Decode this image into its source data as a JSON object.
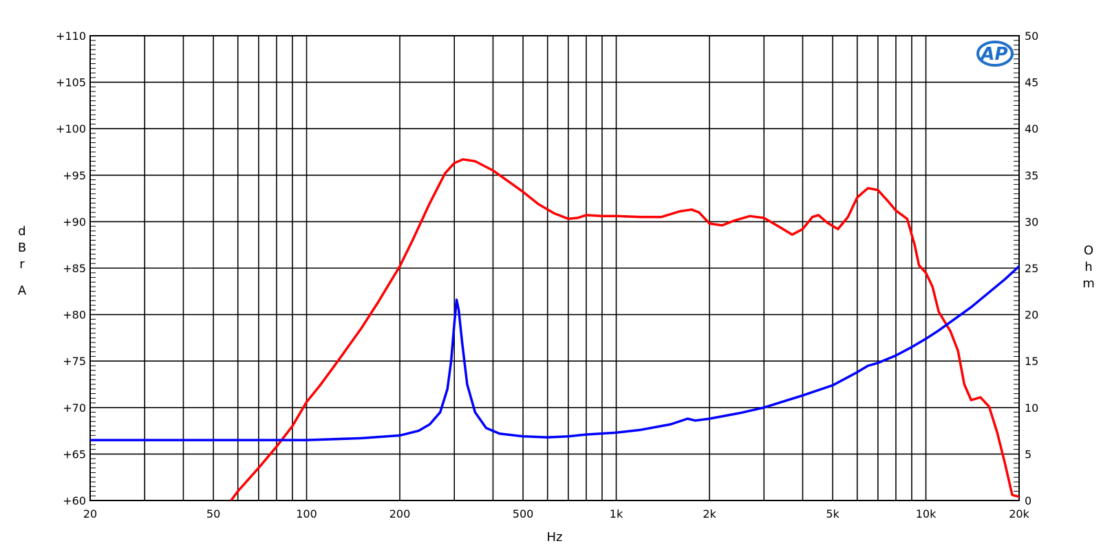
{
  "chart_data": {
    "type": "line",
    "xlabel": "Hz",
    "ylabel": "dBrA",
    "y2label": "Ohm",
    "xscale": "log",
    "xlim": [
      20,
      20000
    ],
    "ylim": [
      60,
      110
    ],
    "y2lim": [
      0,
      50
    ],
    "grid": true,
    "logo": "AP",
    "x_tick_labels": [
      {
        "value": 20,
        "label": "20"
      },
      {
        "value": 50,
        "label": "50"
      },
      {
        "value": 100,
        "label": "100"
      },
      {
        "value": 200,
        "label": "200"
      },
      {
        "value": 500,
        "label": "500"
      },
      {
        "value": 1000,
        "label": "1k"
      },
      {
        "value": 2000,
        "label": "2k"
      },
      {
        "value": 5000,
        "label": "5k"
      },
      {
        "value": 10000,
        "label": "10k"
      },
      {
        "value": 20000,
        "label": "20k"
      }
    ],
    "y_tick_labels": [
      {
        "value": 110,
        "label": "+110"
      },
      {
        "value": 105,
        "label": "+105"
      },
      {
        "value": 100,
        "label": "+100"
      },
      {
        "value": 95,
        "label": "+95"
      },
      {
        "value": 90,
        "label": "+90"
      },
      {
        "value": 85,
        "label": "+85"
      },
      {
        "value": 80,
        "label": "+80"
      },
      {
        "value": 75,
        "label": "+75"
      },
      {
        "value": 70,
        "label": "+70"
      },
      {
        "value": 65,
        "label": "+65"
      },
      {
        "value": 60,
        "label": "+60"
      }
    ],
    "y2_tick_labels": [
      {
        "value": 50,
        "label": "50"
      },
      {
        "value": 45,
        "label": "45"
      },
      {
        "value": 40,
        "label": "40"
      },
      {
        "value": 35,
        "label": "35"
      },
      {
        "value": 30,
        "label": "30"
      },
      {
        "value": 25,
        "label": "25"
      },
      {
        "value": 20,
        "label": "20"
      },
      {
        "value": 15,
        "label": "15"
      },
      {
        "value": 10,
        "label": "10"
      },
      {
        "value": 5,
        "label": "5"
      },
      {
        "value": 0,
        "label": "0"
      }
    ],
    "series": [
      {
        "axis": "left",
        "color": "#ff0000",
        "points": [
          [
            57,
            60
          ],
          [
            60,
            61
          ],
          [
            70,
            63.5
          ],
          [
            80,
            65.8
          ],
          [
            90,
            68
          ],
          [
            100,
            70.6
          ],
          [
            110,
            72.3
          ],
          [
            120,
            74
          ],
          [
            130,
            75.6
          ],
          [
            150,
            78.5
          ],
          [
            170,
            81.3
          ],
          [
            200,
            85.2
          ],
          [
            220,
            88
          ],
          [
            250,
            92
          ],
          [
            280,
            95.2
          ],
          [
            300,
            96.3
          ],
          [
            320,
            96.7
          ],
          [
            350,
            96.5
          ],
          [
            400,
            95.5
          ],
          [
            450,
            94.3
          ],
          [
            500,
            93.2
          ],
          [
            560,
            91.9
          ],
          [
            630,
            90.9
          ],
          [
            700,
            90.3
          ],
          [
            750,
            90.4
          ],
          [
            800,
            90.7
          ],
          [
            900,
            90.6
          ],
          [
            1000,
            90.6
          ],
          [
            1200,
            90.5
          ],
          [
            1400,
            90.5
          ],
          [
            1600,
            91.1
          ],
          [
            1750,
            91.3
          ],
          [
            1850,
            91
          ],
          [
            2000,
            89.8
          ],
          [
            2200,
            89.6
          ],
          [
            2400,
            90.1
          ],
          [
            2700,
            90.6
          ],
          [
            3000,
            90.4
          ],
          [
            3300,
            89.6
          ],
          [
            3700,
            88.6
          ],
          [
            4000,
            89.2
          ],
          [
            4300,
            90.5
          ],
          [
            4500,
            90.7
          ],
          [
            4800,
            89.9
          ],
          [
            5200,
            89.2
          ],
          [
            5600,
            90.5
          ],
          [
            6000,
            92.6
          ],
          [
            6500,
            93.6
          ],
          [
            7000,
            93.4
          ],
          [
            7500,
            92.3
          ],
          [
            8000,
            91.2
          ],
          [
            8700,
            90.3
          ],
          [
            9200,
            87.5
          ],
          [
            9500,
            85.3
          ],
          [
            10000,
            84.5
          ],
          [
            10500,
            83
          ],
          [
            11000,
            80.3
          ],
          [
            12000,
            78.2
          ],
          [
            12700,
            76.1
          ],
          [
            13300,
            72.5
          ],
          [
            14000,
            70.8
          ],
          [
            15000,
            71.1
          ],
          [
            16000,
            70.1
          ],
          [
            17000,
            67.3
          ],
          [
            18000,
            64
          ],
          [
            19000,
            60.6
          ],
          [
            20000,
            60.4
          ],
          [
            21000,
            60
          ]
        ]
      },
      {
        "axis": "right",
        "color": "#0000ff",
        "points": [
          [
            20,
            6.5
          ],
          [
            50,
            6.5
          ],
          [
            100,
            6.5
          ],
          [
            150,
            6.7
          ],
          [
            200,
            7
          ],
          [
            230,
            7.5
          ],
          [
            250,
            8.2
          ],
          [
            270,
            9.5
          ],
          [
            285,
            12
          ],
          [
            293,
            15
          ],
          [
            300,
            19
          ],
          [
            305,
            21.6
          ],
          [
            310,
            20.5
          ],
          [
            318,
            17
          ],
          [
            330,
            12.5
          ],
          [
            350,
            9.5
          ],
          [
            380,
            7.8
          ],
          [
            420,
            7.2
          ],
          [
            500,
            6.9
          ],
          [
            600,
            6.8
          ],
          [
            700,
            6.9
          ],
          [
            800,
            7.1
          ],
          [
            1000,
            7.3
          ],
          [
            1200,
            7.6
          ],
          [
            1500,
            8.2
          ],
          [
            1700,
            8.8
          ],
          [
            1800,
            8.6
          ],
          [
            2000,
            8.8
          ],
          [
            2500,
            9.4
          ],
          [
            3000,
            10
          ],
          [
            3500,
            10.7
          ],
          [
            4000,
            11.3
          ],
          [
            5000,
            12.4
          ],
          [
            6000,
            13.8
          ],
          [
            6500,
            14.5
          ],
          [
            7000,
            14.8
          ],
          [
            8000,
            15.6
          ],
          [
            9000,
            16.5
          ],
          [
            10000,
            17.4
          ],
          [
            11000,
            18.3
          ],
          [
            12000,
            19.2
          ],
          [
            14000,
            20.8
          ],
          [
            16000,
            22.4
          ],
          [
            18000,
            23.8
          ],
          [
            20000,
            25.2
          ],
          [
            21000,
            26
          ]
        ]
      }
    ]
  }
}
